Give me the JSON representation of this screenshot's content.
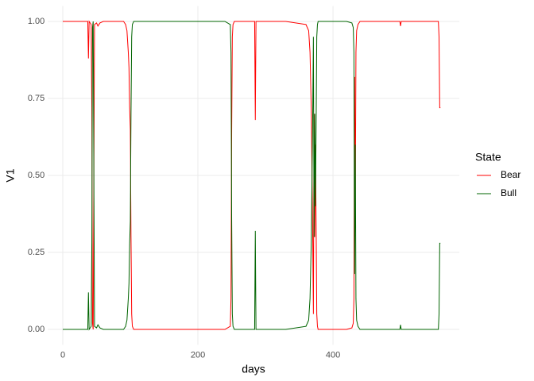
{
  "chart_data": {
    "type": "line",
    "x_label": "days",
    "y_label": "V1",
    "legend_title": "State",
    "x": [
      0,
      10,
      20,
      30,
      37,
      38,
      39,
      42,
      43,
      44,
      45,
      46,
      47,
      50,
      52,
      55,
      60,
      70,
      80,
      90,
      93,
      95,
      97,
      98,
      99,
      100,
      101,
      102,
      103,
      105,
      110,
      150,
      200,
      240,
      248,
      249,
      250,
      251,
      252,
      254,
      260,
      270,
      280,
      284,
      285,
      286,
      290,
      300,
      330,
      360,
      364,
      366,
      368,
      370,
      371,
      372,
      373,
      374,
      375,
      376,
      377,
      378,
      380,
      400,
      420,
      428,
      430,
      431,
      432,
      433,
      434,
      435,
      437,
      440,
      450,
      480,
      499,
      500,
      501,
      520,
      550,
      556,
      557,
      558,
      559
    ],
    "series": [
      {
        "name": "Bear",
        "color": "#ff0000",
        "values": [
          1,
          1,
          1,
          1,
          1,
          0.88,
          1,
          0.99,
          0.72,
          0.02,
          0,
          0.5,
          0.99,
          0.995,
          0.985,
          0.995,
          1,
          1,
          1,
          1,
          0.99,
          0.97,
          0.9,
          0.85,
          0.72,
          0.65,
          0.3,
          0.05,
          0.01,
          0,
          0,
          0,
          0,
          0,
          0.01,
          0.1,
          0.64,
          0.95,
          0.99,
          1,
          1,
          1,
          1,
          1,
          0.68,
          1,
          1,
          1,
          1,
          0.99,
          0.97,
          0.9,
          0.7,
          0.3,
          0.05,
          0.7,
          0.3,
          0.6,
          0.35,
          0.05,
          0.01,
          0,
          0,
          0,
          0,
          0.005,
          0.02,
          0.1,
          0.82,
          0.4,
          0.9,
          0.97,
          0.99,
          1,
          1,
          1,
          1,
          0.985,
          1,
          1,
          1,
          1,
          0.95,
          0.72,
          0.72
        ]
      },
      {
        "name": "Bull",
        "color": "#006400",
        "values": [
          0,
          0,
          0,
          0,
          0,
          0.12,
          0,
          0.01,
          0.28,
          0.98,
          1,
          0.5,
          0.01,
          0.005,
          0.015,
          0.005,
          0,
          0,
          0,
          0,
          0.01,
          0.03,
          0.1,
          0.15,
          0.28,
          0.35,
          0.7,
          0.95,
          0.99,
          1,
          1,
          1,
          1,
          1,
          0.99,
          0.9,
          0.36,
          0.05,
          0.01,
          0,
          0,
          0,
          0,
          0,
          0.32,
          0,
          0,
          0,
          0,
          0.01,
          0.03,
          0.1,
          0.3,
          0.7,
          0.95,
          0.3,
          0.7,
          0.4,
          0.65,
          0.95,
          0.99,
          1,
          1,
          1,
          1,
          0.995,
          0.98,
          0.9,
          0.18,
          0.6,
          0.1,
          0.03,
          0.01,
          0,
          0,
          0,
          0,
          0.015,
          0,
          0,
          0,
          0,
          0.05,
          0.28,
          0.28
        ]
      }
    ],
    "xlim": [
      -22,
      587
    ],
    "xticks": [
      0,
      200,
      400
    ],
    "ylim": [
      -0.05,
      1.05
    ],
    "yticks": [
      {
        "value": 0,
        "label": "0.00"
      },
      {
        "value": 0.25,
        "label": "0.25"
      },
      {
        "value": 0.5,
        "label": "0.50"
      },
      {
        "value": 0.75,
        "label": "0.75"
      },
      {
        "value": 1,
        "label": "1.00"
      }
    ],
    "grid": true
  }
}
